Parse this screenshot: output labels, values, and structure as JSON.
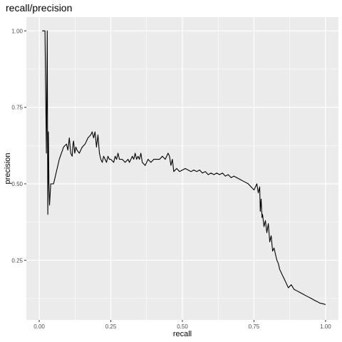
{
  "chart_data": {
    "type": "line",
    "title": "recall/precision",
    "xlabel": "recall",
    "ylabel": "precision",
    "xlim": [
      -0.045,
      1.045
    ],
    "ylim": [
      0.055,
      1.045
    ],
    "x_ticks": [
      {
        "value": 0.0,
        "label": "0.00"
      },
      {
        "value": 0.25,
        "label": "0.25"
      },
      {
        "value": 0.5,
        "label": "0.50"
      },
      {
        "value": 0.75,
        "label": "0.75"
      },
      {
        "value": 1.0,
        "label": "1.00"
      }
    ],
    "y_ticks": [
      {
        "value": 0.25,
        "label": "0.25"
      },
      {
        "value": 0.5,
        "label": "0.50"
      },
      {
        "value": 0.75,
        "label": "0.75"
      },
      {
        "value": 1.0,
        "label": "1.00"
      }
    ],
    "grid": true,
    "panel_background": "#ebebeb",
    "grid_color": "#ffffff",
    "line_color": "#000000",
    "series": [
      {
        "x": [
          0.01,
          0.02,
          0.025,
          0.028,
          0.03,
          0.032,
          0.034,
          0.036,
          0.04,
          0.045,
          0.05,
          0.06,
          0.07,
          0.085,
          0.095,
          0.1,
          0.105,
          0.11,
          0.115,
          0.118,
          0.12,
          0.124,
          0.128,
          0.132,
          0.14,
          0.15,
          0.16,
          0.17,
          0.18,
          0.185,
          0.19,
          0.195,
          0.2,
          0.205,
          0.21,
          0.215,
          0.22,
          0.225,
          0.23,
          0.235,
          0.24,
          0.245,
          0.25,
          0.26,
          0.265,
          0.27,
          0.275,
          0.28,
          0.29,
          0.3,
          0.31,
          0.315,
          0.32,
          0.325,
          0.33,
          0.335,
          0.34,
          0.345,
          0.35,
          0.355,
          0.36,
          0.37,
          0.38,
          0.39,
          0.4,
          0.41,
          0.42,
          0.43,
          0.44,
          0.45,
          0.455,
          0.46,
          0.465,
          0.47,
          0.48,
          0.49,
          0.5,
          0.51,
          0.52,
          0.53,
          0.54,
          0.55,
          0.56,
          0.57,
          0.58,
          0.59,
          0.6,
          0.61,
          0.62,
          0.63,
          0.64,
          0.65,
          0.66,
          0.67,
          0.68,
          0.69,
          0.7,
          0.71,
          0.72,
          0.73,
          0.74,
          0.75,
          0.76,
          0.765,
          0.77,
          0.772,
          0.775,
          0.778,
          0.78,
          0.785,
          0.79,
          0.795,
          0.8,
          0.805,
          0.81,
          0.815,
          0.82,
          0.825,
          0.83,
          0.835,
          0.84,
          0.845,
          0.85,
          0.855,
          0.86,
          0.87,
          0.88,
          0.89,
          0.9,
          0.91,
          0.92,
          0.93,
          0.94,
          0.95,
          0.96,
          0.97,
          0.98,
          0.99,
          1.0
        ],
        "y": [
          1.0,
          1.0,
          0.6,
          1.0,
          0.4,
          0.67,
          0.5,
          0.43,
          0.5,
          0.5,
          0.5,
          0.54,
          0.58,
          0.62,
          0.63,
          0.61,
          0.65,
          0.6,
          0.59,
          0.63,
          0.64,
          0.6,
          0.62,
          0.61,
          0.6,
          0.62,
          0.63,
          0.65,
          0.66,
          0.67,
          0.65,
          0.67,
          0.62,
          0.66,
          0.6,
          0.58,
          0.57,
          0.59,
          0.58,
          0.57,
          0.59,
          0.58,
          0.58,
          0.57,
          0.59,
          0.58,
          0.6,
          0.58,
          0.58,
          0.57,
          0.58,
          0.57,
          0.58,
          0.59,
          0.58,
          0.6,
          0.58,
          0.59,
          0.58,
          0.6,
          0.57,
          0.56,
          0.58,
          0.57,
          0.58,
          0.58,
          0.58,
          0.59,
          0.58,
          0.6,
          0.59,
          0.56,
          0.58,
          0.54,
          0.55,
          0.54,
          0.545,
          0.55,
          0.545,
          0.54,
          0.545,
          0.54,
          0.545,
          0.535,
          0.54,
          0.53,
          0.535,
          0.53,
          0.535,
          0.53,
          0.535,
          0.525,
          0.53,
          0.52,
          0.525,
          0.52,
          0.515,
          0.51,
          0.505,
          0.5,
          0.49,
          0.48,
          0.5,
          0.47,
          0.49,
          0.41,
          0.45,
          0.39,
          0.4,
          0.36,
          0.38,
          0.34,
          0.37,
          0.31,
          0.33,
          0.28,
          0.29,
          0.27,
          0.25,
          0.24,
          0.22,
          0.21,
          0.2,
          0.19,
          0.18,
          0.16,
          0.17,
          0.155,
          0.15,
          0.145,
          0.14,
          0.135,
          0.13,
          0.125,
          0.12,
          0.115,
          0.11,
          0.108,
          0.105
        ]
      }
    ]
  }
}
